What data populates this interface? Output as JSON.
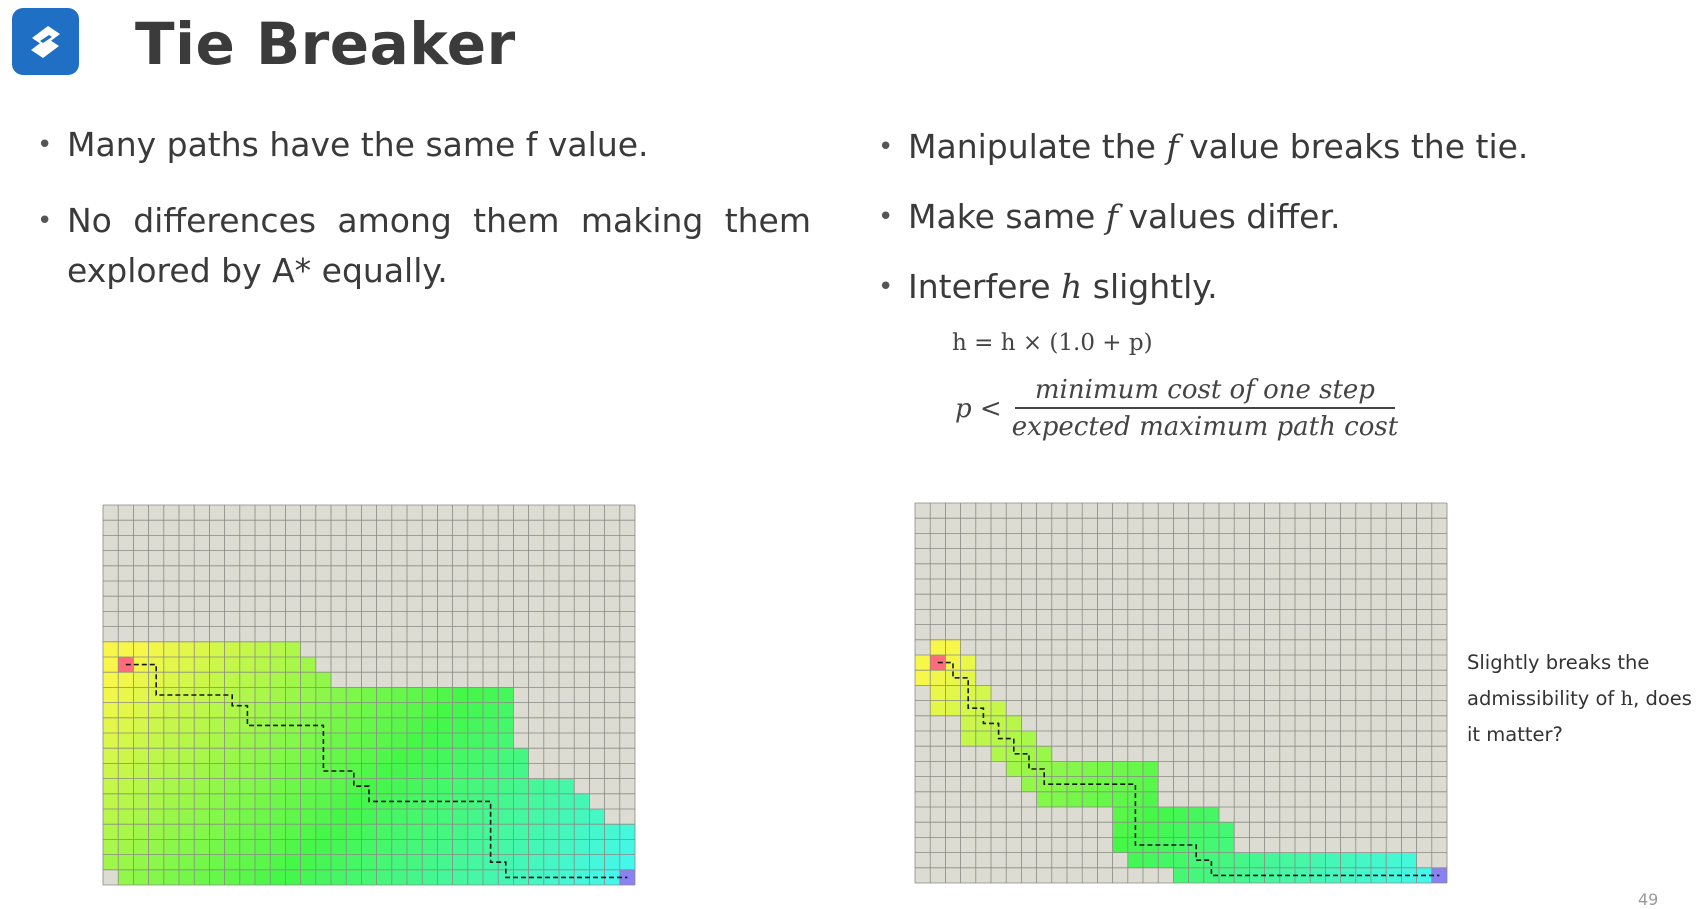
{
  "header": {
    "title": "Tie Breaker",
    "logo": "s-cube-logo"
  },
  "left_bullets": [
    {
      "text": "Many paths have the same f value."
    },
    {
      "text": "No differences among them making them explored by A* equally."
    }
  ],
  "right_bullets": [
    {
      "pre": "Manipulate the ",
      "sym": "𝑓",
      "post": " value breaks the tie."
    },
    {
      "pre": "Make same ",
      "sym": "𝑓",
      "post": " values differ."
    },
    {
      "pre": "Interfere ",
      "sym": "ℎ",
      "post": " slightly."
    }
  ],
  "formula": {
    "line1": "h = h × (1.0 + p)",
    "lhs": "p <",
    "numerator": "minimum cost of one step",
    "denominator": "expected maximum path cost"
  },
  "note": {
    "pre": "Slightly breaks the admissibility of ",
    "sym": "h",
    "post": ", does it matter?"
  },
  "page_number": "49",
  "colors": {
    "logo": "#1f6fc5",
    "grid_bg": "#dddcd2",
    "grid_line": "#8a8a84",
    "start": "#ff6d7d",
    "goal": "#8a82f0",
    "path": "#1a1a1a"
  }
}
